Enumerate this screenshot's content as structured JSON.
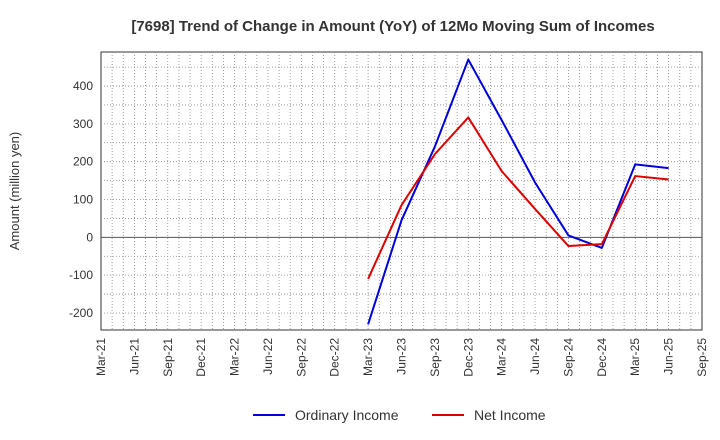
{
  "chart_data": {
    "type": "line",
    "title": "[7698]  Trend of Change in Amount (YoY) of 12Mo Moving Sum of Incomes",
    "xlabel": "",
    "ylabel": "Amount (million yen)",
    "categories": [
      "Mar-21",
      "Jun-21",
      "Sep-21",
      "Dec-21",
      "Mar-22",
      "Jun-22",
      "Sep-22",
      "Dec-22",
      "Mar-23",
      "Jun-23",
      "Sep-23",
      "Dec-23",
      "Mar-24",
      "Jun-24",
      "Sep-24",
      "Dec-24",
      "Mar-25",
      "Jun-25",
      "Sep-25"
    ],
    "ylim": [
      -245,
      490
    ],
    "yticks": [
      -200,
      -100,
      0,
      100,
      200,
      300,
      400
    ],
    "grid": true,
    "legend": "bottom",
    "series": [
      {
        "name": "Ordinary Income",
        "color": "#0000dd",
        "values": [
          null,
          null,
          null,
          null,
          null,
          null,
          null,
          null,
          -230,
          45,
          240,
          470,
          310,
          145,
          5,
          -28,
          193,
          183,
          null
        ]
      },
      {
        "name": "Net Income",
        "color": "#dd0000",
        "values": [
          null,
          null,
          null,
          null,
          null,
          null,
          null,
          null,
          -110,
          85,
          220,
          317,
          175,
          75,
          -23,
          -18,
          162,
          153,
          null
        ]
      }
    ]
  }
}
